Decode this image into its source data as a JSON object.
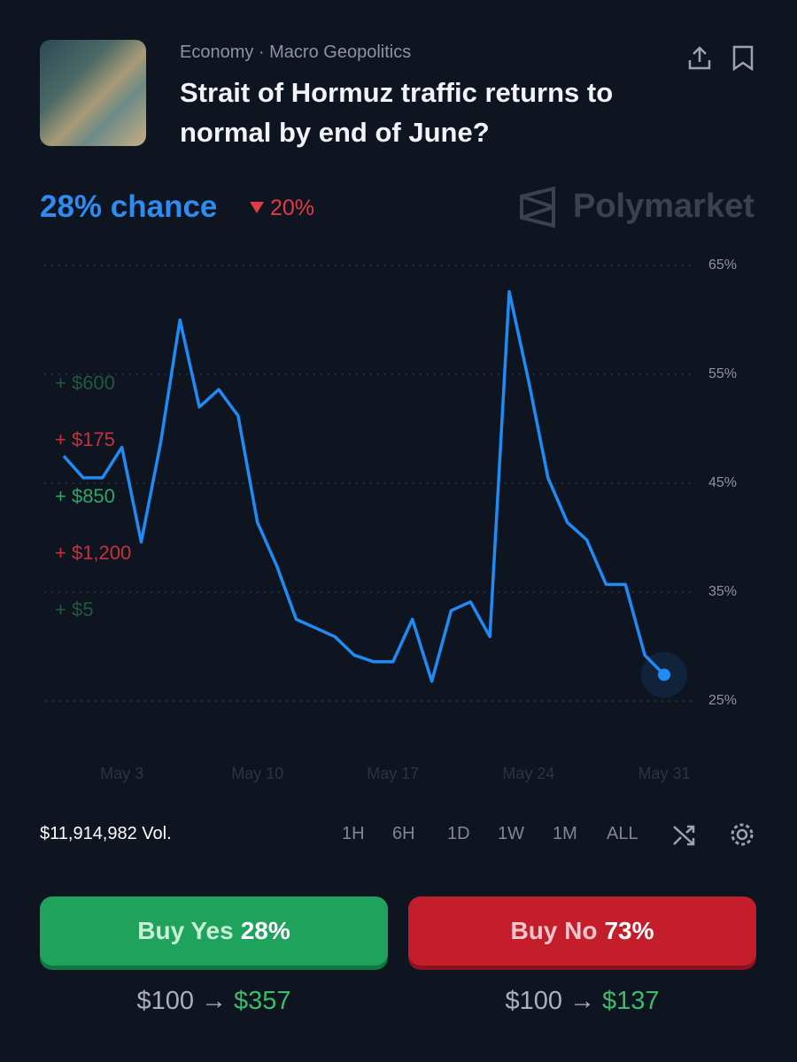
{
  "header": {
    "category": "Economy · Macro Geopolitics",
    "title": "Strait of Hormuz traffic returns to normal by end of June?",
    "chance": "28% chance",
    "change": "20%",
    "brand": "Polymarket"
  },
  "chart_data": {
    "type": "line",
    "color": "#1f8bf5",
    "x": [
      "Apr 30",
      "May 1",
      "May 2",
      "May 3",
      "May 4",
      "May 5",
      "May 6",
      "May 7",
      "May 8",
      "May 9",
      "May 10",
      "May 11",
      "May 12",
      "May 13",
      "May 14",
      "May 15",
      "May 16",
      "May 17",
      "May 18",
      "May 19",
      "May 20",
      "May 21",
      "May 22",
      "May 23",
      "May 24",
      "May 25",
      "May 26",
      "May 27",
      "May 28",
      "May 29",
      "May 30",
      "May 31"
    ],
    "values": [
      47.5,
      45.5,
      45.5,
      48.3,
      39.6,
      48.7,
      60,
      52,
      53.6,
      51.2,
      41.4,
      37.4,
      32.5,
      31.7,
      30.9,
      29.2,
      28.6,
      28.6,
      32.5,
      26.8,
      33.3,
      34.1,
      30.9,
      62.6,
      54.4,
      45.5,
      41.4,
      39.8,
      35.7,
      35.7,
      29.2,
      27.4
    ],
    "xlim": [
      "Apr 30",
      "May 31"
    ],
    "xticks": [
      "May 3",
      "May 10",
      "May 17",
      "May 24",
      "May 31"
    ],
    "ylim": [
      25,
      65
    ],
    "yticks": [
      {
        "value": 25,
        "label": "25%"
      },
      {
        "value": 35,
        "label": "35%"
      },
      {
        "value": 45,
        "label": "45%"
      },
      {
        "value": 55,
        "label": "55%"
      },
      {
        "value": 65,
        "label": "65%"
      }
    ],
    "grid": true
  },
  "trades": [
    "+ $600",
    "+ $175",
    "+ $850",
    "+ $1,200",
    "+ $5"
  ],
  "volume": "$11,914,982 Vol.",
  "ranges": [
    "1H",
    "6H",
    "1D",
    "1W",
    "1M",
    "ALL"
  ],
  "buttons": [
    {
      "label": "Buy Yes",
      "price": "28%",
      "stake": "$100 →",
      "payout": "$357"
    },
    {
      "label": "Buy No",
      "price": "73%",
      "stake": "$100 →",
      "payout": "$137"
    }
  ]
}
